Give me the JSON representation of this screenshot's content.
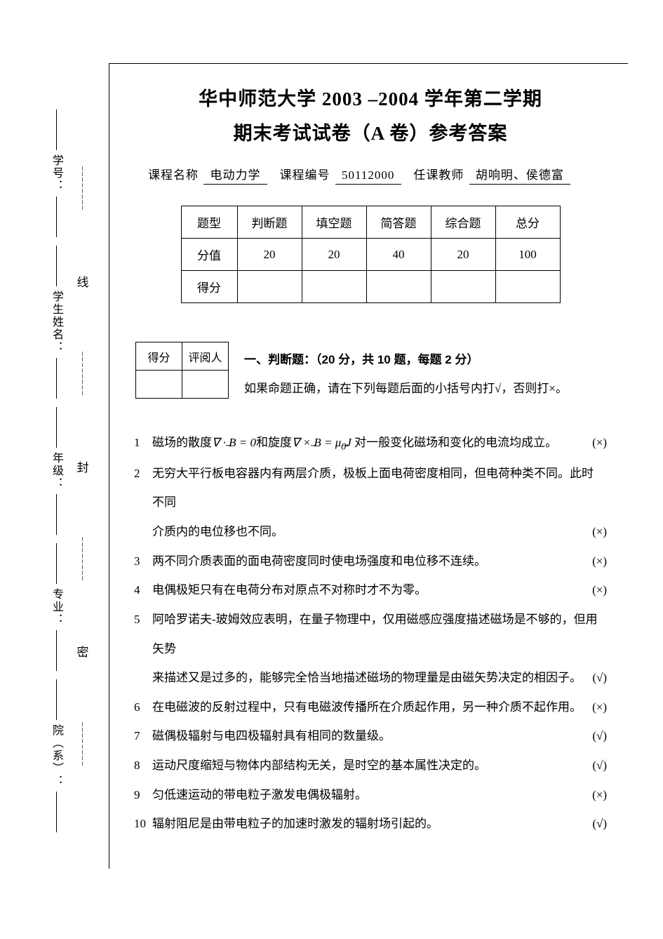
{
  "title": {
    "line1": "华中师范大学 2003 –2004 学年第二学期",
    "line2": "期末考试试卷（A 卷）参考答案"
  },
  "course": {
    "name_label": "课程名称",
    "name_value": "电动力学",
    "code_label": "课程编号",
    "code_value": "50112000",
    "teacher_label": "任课教师",
    "teacher_value": "胡响明、侯德富"
  },
  "score_table": {
    "row1": [
      "题型",
      "判断题",
      "填空题",
      "简答题",
      "综合题",
      "总分"
    ],
    "row2": [
      "分值",
      "20",
      "20",
      "40",
      "20",
      "100"
    ],
    "row3_label": "得分"
  },
  "mini_score": {
    "score_label": "得分",
    "reviewer_label": "评阅人"
  },
  "section1": {
    "heading": "一、判断题：（20 分，共 10 题，每题 2 分）",
    "instruction": "如果命题正确，请在下列每题后面的小括号内打√，否则打×。"
  },
  "answers": {
    "correct": "(√)",
    "wrong": "(×)"
  },
  "questions": [
    {
      "num": "1",
      "text_pre": "磁场的散度",
      "eq1": "∇ · ",
      "vec1": "B",
      "eq1b": " = 0",
      "mid": "和旋度",
      "eq2": "∇ × ",
      "vec2": "B",
      "eq2b": " = μ",
      "sub": "0",
      "vec3": "J",
      "text_post": " 对一般变化磁场和变化的电流均成立。",
      "ans": "wrong"
    },
    {
      "num": "2",
      "line1": "无穷大平行板电容器内有两层介质，极板上面电荷密度相同，但电荷种类不同。此时不同",
      "line2": "介质内的电位移也不同。",
      "ans": "wrong"
    },
    {
      "num": "3",
      "text": "两不同介质表面的面电荷密度同时使电场强度和电位移不连续。",
      "ans": "wrong"
    },
    {
      "num": "4",
      "text": "电偶极矩只有在电荷分布对原点不对称时才不为零。",
      "ans": "wrong"
    },
    {
      "num": "5",
      "line1": "阿哈罗诺夫-玻姆效应表明，在量子物理中，仅用磁感应强度描述磁场是不够的，但用矢势",
      "line2": "来描述又是过多的，能够完全恰当地描述磁场的物理量是由磁矢势决定的相因子。",
      "ans": "correct"
    },
    {
      "num": "6",
      "text": "在电磁波的反射过程中，只有电磁波传播所在介质起作用，另一种介质不起作用。",
      "ans": "wrong"
    },
    {
      "num": "7",
      "text": "磁偶极辐射与电四极辐射具有相同的数量级。",
      "ans": "correct"
    },
    {
      "num": "8",
      "text": "运动尺度缩短与物体内部结构无关，是时空的基本属性决定的。",
      "ans": "correct"
    },
    {
      "num": "9",
      "text": "匀低速运动的带电粒子激发电偶极辐射。",
      "ans": "wrong"
    },
    {
      "num": "10",
      "text": "辐射阻尼是由带电粒子的加速时激发的辐射场引起的。",
      "ans": "correct"
    }
  ],
  "sidebar": {
    "binding_chars": [
      "线",
      "封",
      "密"
    ],
    "labels": [
      "学号：",
      "学生姓名：",
      "年级：",
      "专业：",
      "院（系）："
    ],
    "dash": "┄┄┄┄┄┄┄┄"
  }
}
